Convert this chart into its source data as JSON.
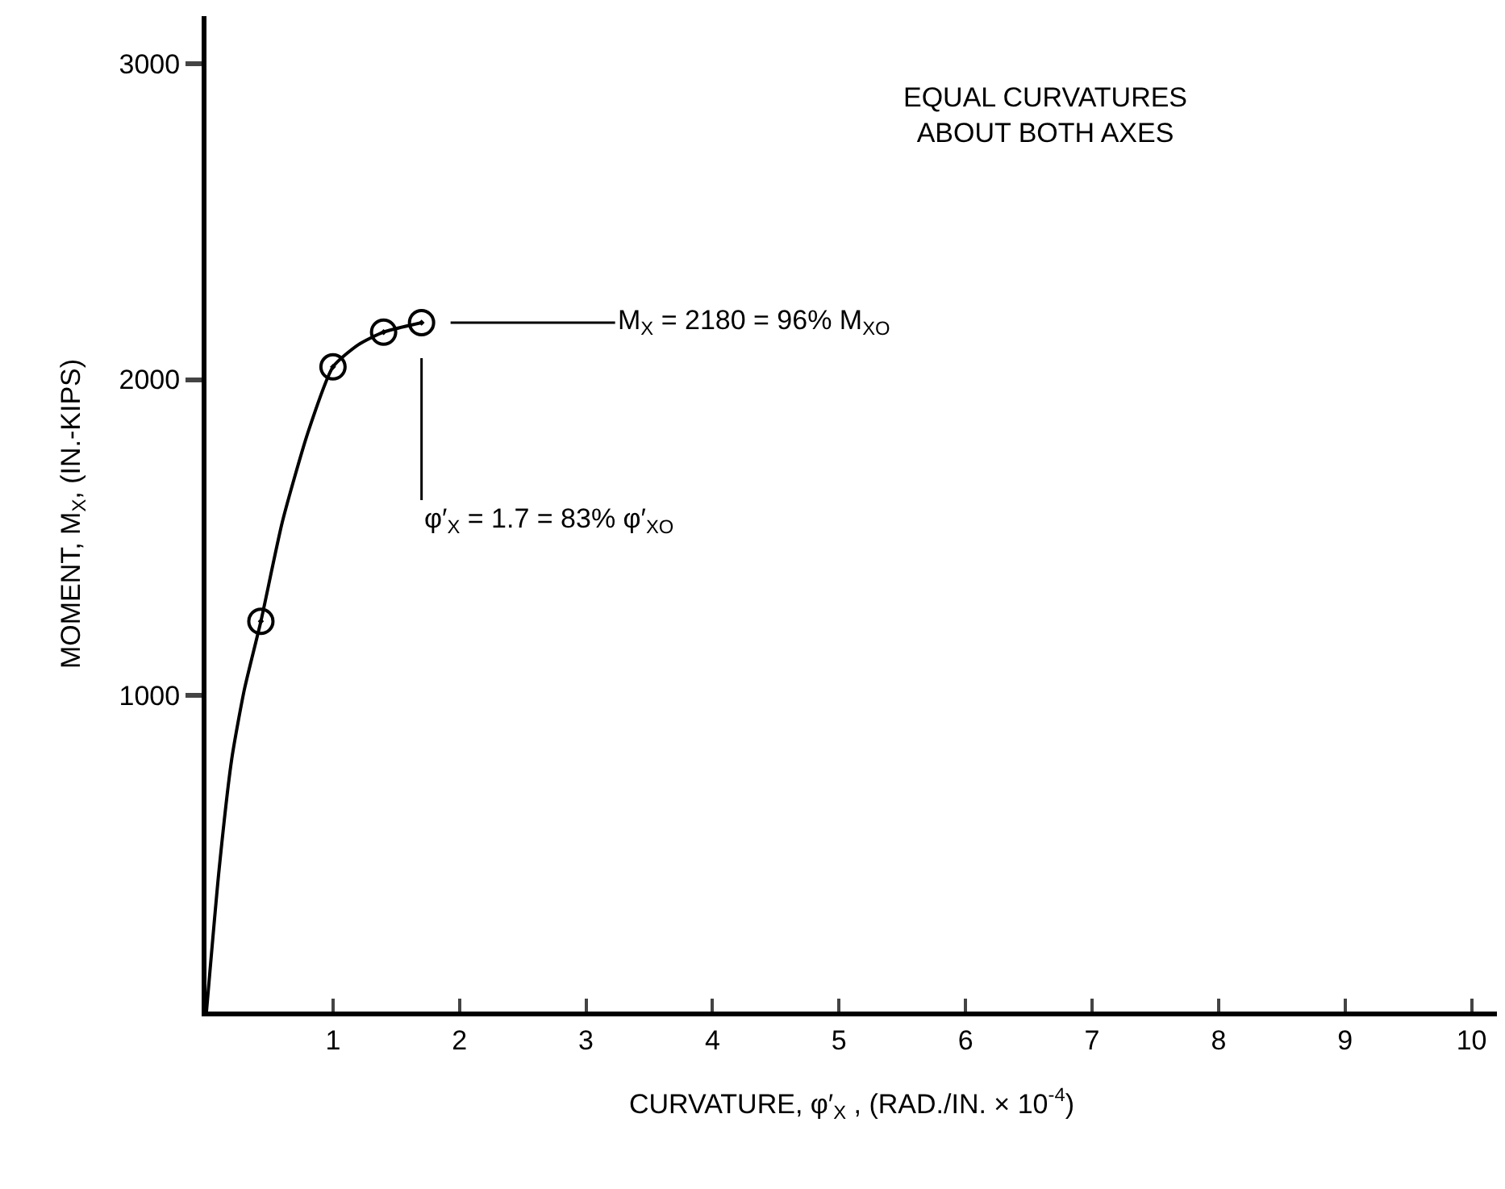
{
  "chart_data": {
    "type": "line",
    "xlabel": "CURVATURE, φ′$_{X}$ , (RAD./IN. × 10$^{-4}$)",
    "ylabel": "MOMENT, M$_{X}$, (IN.-KIPS)",
    "xlim": [
      0,
      10.2
    ],
    "xticks": [
      1,
      2,
      3,
      4,
      5,
      6,
      7,
      8,
      9,
      10
    ],
    "ylim": [
      0,
      3150
    ],
    "yticks": [
      1000,
      2000,
      3000
    ],
    "grid": false,
    "series": [
      {
        "color": "#000000",
        "marker": "none",
        "x": [
          0,
          0.1,
          0.2,
          0.3,
          0.43,
          0.6,
          0.8,
          1.0,
          1.2,
          1.4,
          1.7
        ],
        "values": [
          0,
          450,
          800,
          1020,
          1235,
          1550,
          1830,
          2040,
          2110,
          2150,
          2180
        ]
      },
      {
        "type": "scatter",
        "color": "#000000",
        "marker": "circle",
        "x": [
          0.43,
          1.0,
          1.4,
          1.7
        ],
        "values": [
          1235,
          2040,
          2150,
          2180
        ]
      }
    ],
    "annotations": [
      "EQUAL CURVATURES\nABOUT BOTH AXES",
      {
        "text": "M$_{X}$ = 2180 = 96% M$_{XO}$",
        "x": 1.7,
        "y": 2180
      },
      {
        "text": "φ′$_{X}$ = 1.7 = 83% φ′$_{XO}$",
        "x": 1.7,
        "y": 2180
      }
    ]
  }
}
